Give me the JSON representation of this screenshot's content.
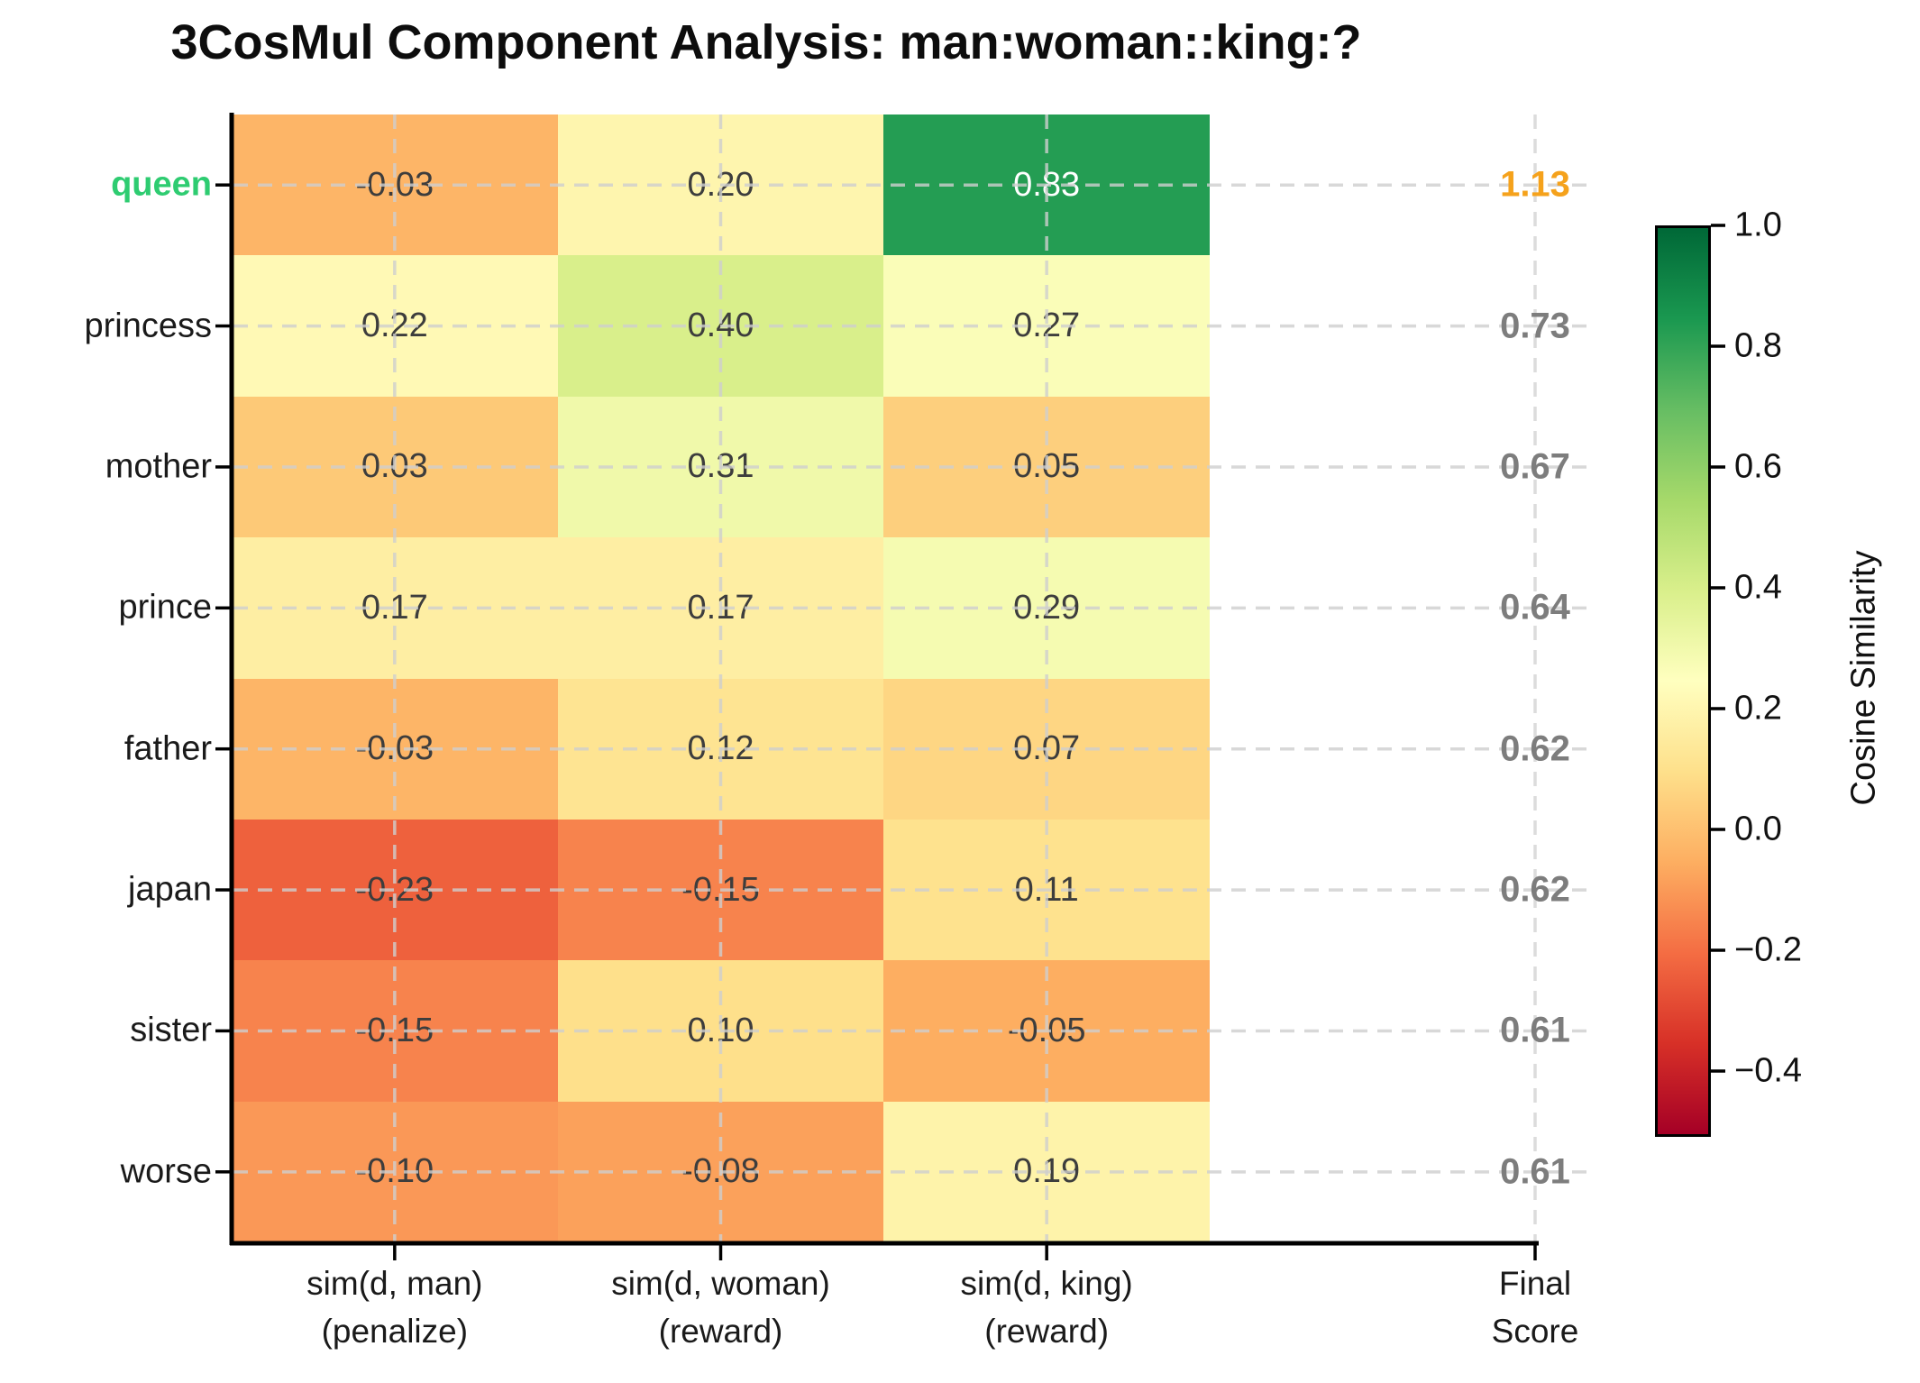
{
  "title": "3CosMul Component Analysis: man:woman::king:?",
  "chart_data": {
    "type": "heatmap",
    "title": "3CosMul Component Analysis: man:woman::king:?",
    "x_axis_labels": [
      {
        "line1": "sim(d, man)",
        "line2": "(penalize)"
      },
      {
        "line1": "sim(d, woman)",
        "line2": "(reward)"
      },
      {
        "line1": "sim(d, king)",
        "line2": "(reward)"
      }
    ],
    "final_column_label": {
      "line1": "Final",
      "line2": "Score"
    },
    "rows": [
      {
        "label": "queen",
        "label_color": "#2ecc71",
        "label_bold": true,
        "values": [
          -0.03,
          0.2,
          0.83
        ],
        "value_labels": [
          "-0.03",
          "0.20",
          "0.83"
        ],
        "cell_colors": [
          "#fdb567",
          "#fef5ae",
          "#249d53"
        ],
        "text_colors": [
          "#3d3d3d",
          "#3d3d3d",
          "#ffffff"
        ],
        "final_score": "1.13",
        "final_score_value": 1.13,
        "final_color": "#f5a21c"
      },
      {
        "label": "princess",
        "label_color": "#1a1a1a",
        "label_bold": false,
        "values": [
          0.22,
          0.4,
          0.27
        ],
        "value_labels": [
          "0.22",
          "0.40",
          "0.27"
        ],
        "cell_colors": [
          "#fff9b5",
          "#d9ef8b",
          "#fafdb8"
        ],
        "text_colors": [
          "#3d3d3d",
          "#3d3d3d",
          "#3d3d3d"
        ],
        "final_score": "0.73",
        "final_score_value": 0.73,
        "final_color": "#7d7d7d"
      },
      {
        "label": "mother",
        "label_color": "#1a1a1a",
        "label_bold": false,
        "values": [
          0.03,
          0.31,
          0.05
        ],
        "value_labels": [
          "0.03",
          "0.31",
          "0.05"
        ],
        "cell_colors": [
          "#fdc977",
          "#f0f9aa",
          "#fdcf7d"
        ],
        "text_colors": [
          "#3d3d3d",
          "#3d3d3d",
          "#3d3d3d"
        ],
        "final_score": "0.67",
        "final_score_value": 0.67,
        "final_color": "#7d7d7d"
      },
      {
        "label": "prince",
        "label_color": "#1a1a1a",
        "label_bold": false,
        "values": [
          0.17,
          0.17,
          0.29
        ],
        "value_labels": [
          "0.17",
          "0.17",
          "0.29"
        ],
        "cell_colors": [
          "#feeea3",
          "#feeea3",
          "#f5fbb1"
        ],
        "text_colors": [
          "#3d3d3d",
          "#3d3d3d",
          "#3d3d3d"
        ],
        "final_score": "0.64",
        "final_score_value": 0.64,
        "final_color": "#7d7d7d"
      },
      {
        "label": "father",
        "label_color": "#1a1a1a",
        "label_bold": false,
        "values": [
          -0.03,
          0.12,
          0.07
        ],
        "value_labels": [
          "-0.03",
          "0.12",
          "0.07"
        ],
        "cell_colors": [
          "#fdb567",
          "#fee492",
          "#fed683"
        ],
        "text_colors": [
          "#3d3d3d",
          "#3d3d3d",
          "#3d3d3d"
        ],
        "final_score": "0.62",
        "final_score_value": 0.62,
        "final_color": "#7d7d7d"
      },
      {
        "label": "japan",
        "label_color": "#1a1a1a",
        "label_bold": false,
        "values": [
          -0.23,
          -0.15,
          0.11
        ],
        "value_labels": [
          "-0.23",
          "-0.15",
          "0.11"
        ],
        "cell_colors": [
          "#ee613d",
          "#f7834d",
          "#fee28e"
        ],
        "text_colors": [
          "#3d3d3d",
          "#3d3d3d",
          "#3d3d3d"
        ],
        "final_score": "0.62",
        "final_score_value": 0.62,
        "final_color": "#7d7d7d"
      },
      {
        "label": "sister",
        "label_color": "#1a1a1a",
        "label_bold": false,
        "values": [
          -0.15,
          0.1,
          -0.05
        ],
        "value_labels": [
          "-0.15",
          "0.10",
          "-0.05"
        ],
        "cell_colors": [
          "#f7834d",
          "#fee08b",
          "#fdae61"
        ],
        "text_colors": [
          "#3d3d3d",
          "#3d3d3d",
          "#3d3d3d"
        ],
        "final_score": "0.61",
        "final_score_value": 0.61,
        "final_color": "#7d7d7d"
      },
      {
        "label": "worse",
        "label_color": "#1a1a1a",
        "label_bold": false,
        "values": [
          -0.1,
          -0.08,
          0.19
        ],
        "value_labels": [
          "-0.10",
          "-0.08",
          "0.19"
        ],
        "cell_colors": [
          "#fa9857",
          "#fba15b",
          "#fef3aa"
        ],
        "text_colors": [
          "#3d3d3d",
          "#3d3d3d",
          "#3d3d3d"
        ],
        "final_score": "0.61",
        "final_score_value": 0.61,
        "final_color": "#7d7d7d"
      }
    ],
    "colorbar": {
      "label": "Cosine Similarity",
      "vmin": -0.5,
      "vmax": 1.0,
      "colormap": "RdYlGn",
      "gradient_stops_top_to_bottom": [
        "#006837",
        "#1a9850",
        "#66bd63",
        "#a6d96a",
        "#d9ef8b",
        "#ffffbf",
        "#fee08b",
        "#fdae61",
        "#f46d43",
        "#d73027",
        "#a50026"
      ],
      "ticks": [
        {
          "value": 1.0,
          "label": "1.0"
        },
        {
          "value": 0.8,
          "label": "0.8"
        },
        {
          "value": 0.6,
          "label": "0.6"
        },
        {
          "value": 0.4,
          "label": "0.4"
        },
        {
          "value": 0.2,
          "label": "0.2"
        },
        {
          "value": 0.0,
          "label": "0.0"
        },
        {
          "value": -0.2,
          "label": "−0.2"
        },
        {
          "value": -0.4,
          "label": "−0.4"
        }
      ]
    },
    "layout_hints": {
      "grid": "dashed",
      "legend_position": "right-colorbar",
      "highlight_row": "queen"
    }
  }
}
